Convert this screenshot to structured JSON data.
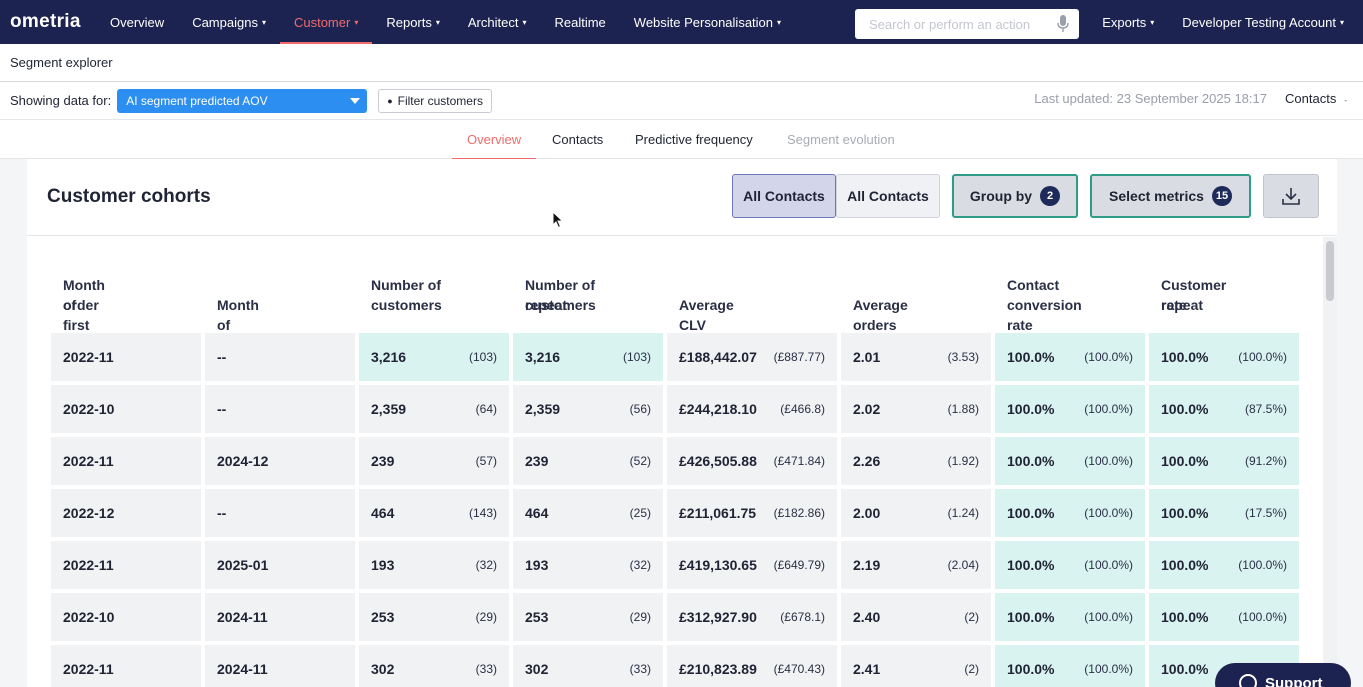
{
  "nav": {
    "logo": "ometria",
    "items": [
      {
        "label": "Overview",
        "caret": ""
      },
      {
        "label": "Campaigns",
        "caret": "▾"
      },
      {
        "label": "Customer",
        "caret": "▾"
      },
      {
        "label": "Reports",
        "caret": "▾"
      },
      {
        "label": "Architect",
        "caret": "▾"
      },
      {
        "label": "Realtime",
        "caret": ""
      },
      {
        "label": "Website Personalisation",
        "caret": "▾"
      }
    ],
    "search_placeholder": "Search or perform an action",
    "right_items": [
      {
        "label": "Exports",
        "caret": "▾"
      },
      {
        "label": "Developer Testing Account",
        "caret": "▾"
      }
    ]
  },
  "subheader": {
    "title": "Segment explorer"
  },
  "filterbar": {
    "showing_label": "Showing data for:",
    "segment": "AI segment predicted AOV",
    "filter_button": "Filter customers",
    "last_updated": "Last updated: 23 September 2025 18:17",
    "contacts_dropdown": "Contacts"
  },
  "tabs": [
    "Overview",
    "Contacts",
    "Predictive frequency",
    "Segment evolution"
  ],
  "card": {
    "title": "Customer cohorts",
    "btn_contacts_a": "All Contacts",
    "btn_contacts_b": "All Contacts",
    "group_by": "Group by",
    "group_by_count": "2",
    "select_metrics": "Select metrics",
    "select_metrics_count": "15"
  },
  "table": {
    "headers": [
      [
        "Month of first",
        "order"
      ],
      [
        "",
        "Month of first visit"
      ],
      [
        "Number of",
        "customers"
      ],
      [
        "Number of repeat",
        "customers"
      ],
      [
        "",
        "Average CLV"
      ],
      [
        "",
        "Average orders"
      ],
      [
        "Contact",
        "conversion rate"
      ],
      [
        "Customer repeat",
        "rate"
      ]
    ],
    "rows": [
      [
        [
          "2022-11",
          ""
        ],
        [
          "--",
          ""
        ],
        [
          "3,216",
          "(103)"
        ],
        [
          "3,216",
          "(103)"
        ],
        [
          "£188,442.07",
          "(£887.77)"
        ],
        [
          "2.01",
          "(3.53)"
        ],
        [
          "100.0%",
          "(100.0%)"
        ],
        [
          "100.0%",
          "(100.0%)"
        ]
      ],
      [
        [
          "2022-10",
          ""
        ],
        [
          "--",
          ""
        ],
        [
          "2,359",
          "(64)"
        ],
        [
          "2,359",
          "(56)"
        ],
        [
          "£244,218.10",
          "(£466.8)"
        ],
        [
          "2.02",
          "(1.88)"
        ],
        [
          "100.0%",
          "(100.0%)"
        ],
        [
          "100.0%",
          "(87.5%)"
        ]
      ],
      [
        [
          "2022-11",
          ""
        ],
        [
          "2024-12",
          ""
        ],
        [
          "239",
          "(57)"
        ],
        [
          "239",
          "(52)"
        ],
        [
          "£426,505.88",
          "(£471.84)"
        ],
        [
          "2.26",
          "(1.92)"
        ],
        [
          "100.0%",
          "(100.0%)"
        ],
        [
          "100.0%",
          "(91.2%)"
        ]
      ],
      [
        [
          "2022-12",
          ""
        ],
        [
          "--",
          ""
        ],
        [
          "464",
          "(143)"
        ],
        [
          "464",
          "(25)"
        ],
        [
          "£211,061.75",
          "(£182.86)"
        ],
        [
          "2.00",
          "(1.24)"
        ],
        [
          "100.0%",
          "(100.0%)"
        ],
        [
          "100.0%",
          "(17.5%)"
        ]
      ],
      [
        [
          "2022-11",
          ""
        ],
        [
          "2025-01",
          ""
        ],
        [
          "193",
          "(32)"
        ],
        [
          "193",
          "(32)"
        ],
        [
          "£419,130.65",
          "(£649.79)"
        ],
        [
          "2.19",
          "(2.04)"
        ],
        [
          "100.0%",
          "(100.0%)"
        ],
        [
          "100.0%",
          "(100.0%)"
        ]
      ],
      [
        [
          "2022-10",
          ""
        ],
        [
          "2024-11",
          ""
        ],
        [
          "253",
          "(29)"
        ],
        [
          "253",
          "(29)"
        ],
        [
          "£312,927.90",
          "(£678.1)"
        ],
        [
          "2.40",
          "(2)"
        ],
        [
          "100.0%",
          "(100.0%)"
        ],
        [
          "100.0%",
          "(100.0%)"
        ]
      ],
      [
        [
          "2022-11",
          ""
        ],
        [
          "2024-11",
          ""
        ],
        [
          "302",
          "(33)"
        ],
        [
          "302",
          "(33)"
        ],
        [
          "£210,823.89",
          "(£470.43)"
        ],
        [
          "2.41",
          "(2)"
        ],
        [
          "100.0%",
          "(100.0%)"
        ],
        [
          "100.0%",
          ""
        ]
      ]
    ]
  },
  "support": {
    "label": "Support"
  }
}
